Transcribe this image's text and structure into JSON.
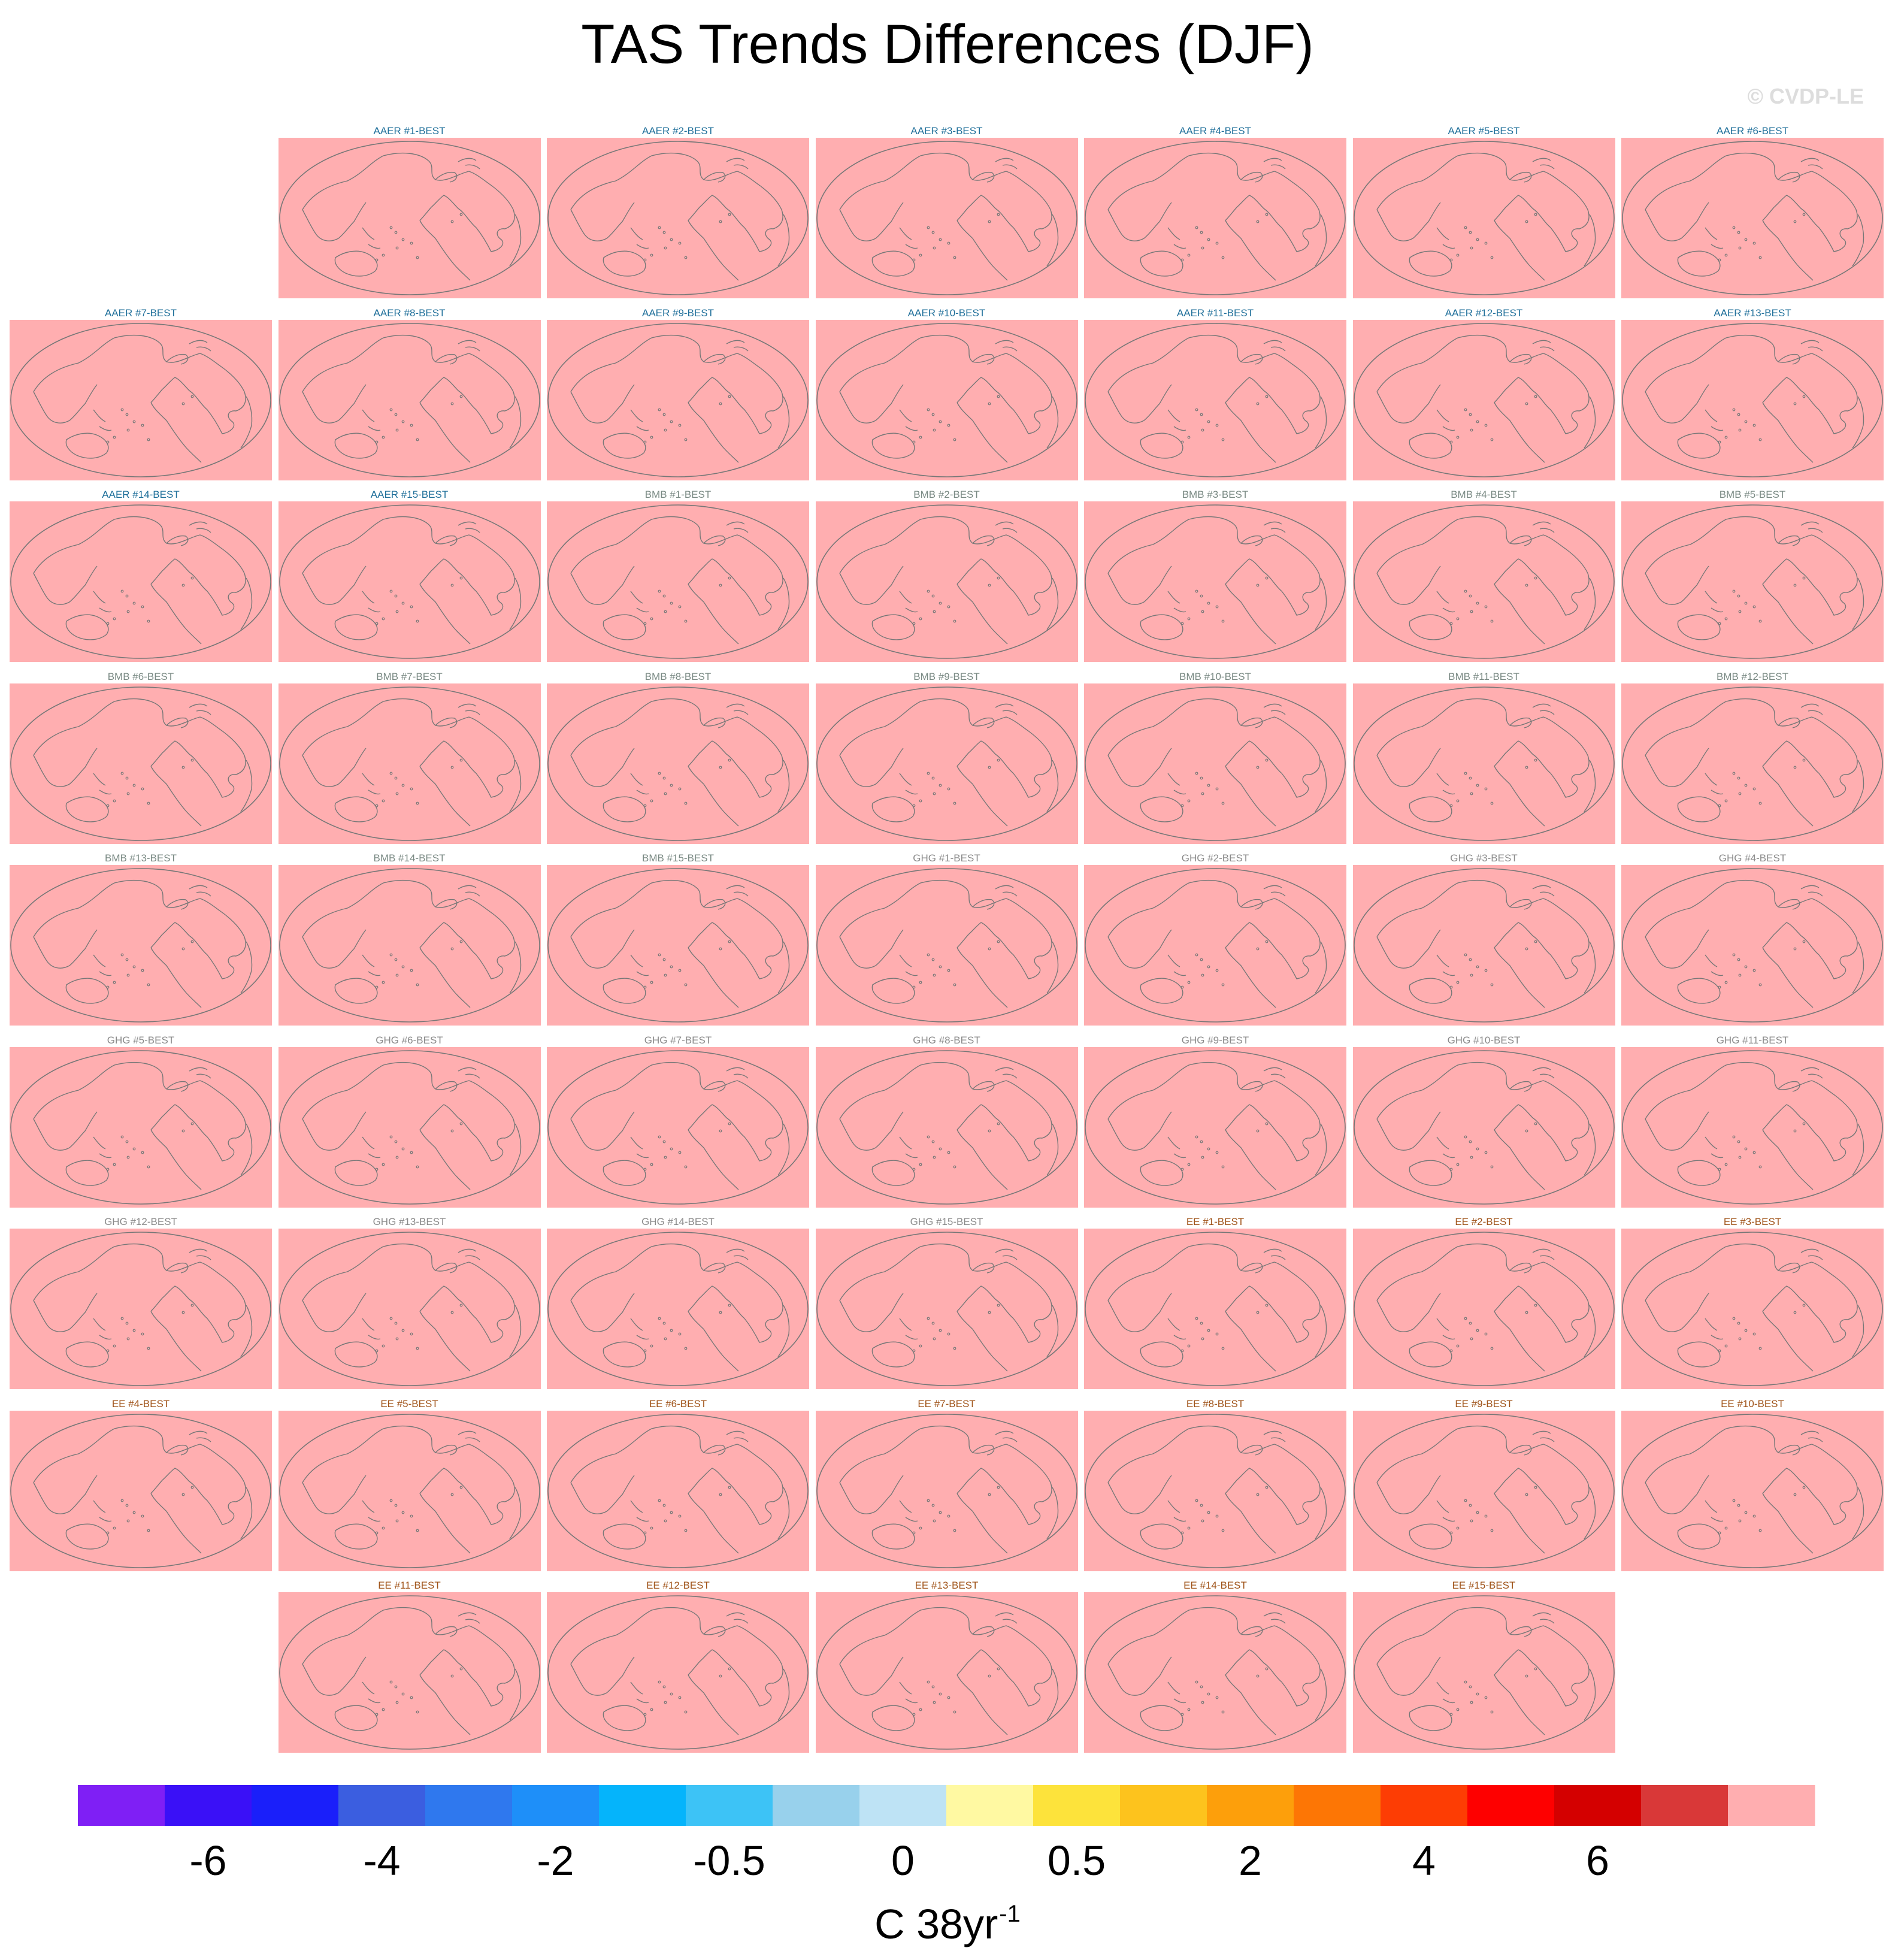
{
  "title": "TAS Trends Differences (DJF)",
  "watermark": "© CVDP-LE",
  "units": {
    "base": "C 38yr",
    "exponent": "-1"
  },
  "colors": {
    "panel_fill": "#ffaeb0",
    "coastline": "#777777",
    "label_AAER": "#1f6f9a",
    "label_BMB": "#7a8a84",
    "label_GHG": "#8a8a8a",
    "label_EE": "#a0541a"
  },
  "chart_data": {
    "type": "heatmap",
    "title": "TAS Trends Differences (DJF)",
    "projection": "robinson-like global map, Pacific-centered",
    "grid_rows": 9,
    "grid_cols": 7,
    "panels": [
      {
        "label": "AAER #1-BEST",
        "group": "AAER",
        "row": 0,
        "col": 1
      },
      {
        "label": "AAER #2-BEST",
        "group": "AAER",
        "row": 0,
        "col": 2
      },
      {
        "label": "AAER #3-BEST",
        "group": "AAER",
        "row": 0,
        "col": 3
      },
      {
        "label": "AAER #4-BEST",
        "group": "AAER",
        "row": 0,
        "col": 4
      },
      {
        "label": "AAER #5-BEST",
        "group": "AAER",
        "row": 0,
        "col": 5
      },
      {
        "label": "AAER #6-BEST",
        "group": "AAER",
        "row": 0,
        "col": 6
      },
      {
        "label": "AAER #7-BEST",
        "group": "AAER",
        "row": 1,
        "col": 0
      },
      {
        "label": "AAER #8-BEST",
        "group": "AAER",
        "row": 1,
        "col": 1
      },
      {
        "label": "AAER #9-BEST",
        "group": "AAER",
        "row": 1,
        "col": 2
      },
      {
        "label": "AAER #10-BEST",
        "group": "AAER",
        "row": 1,
        "col": 3
      },
      {
        "label": "AAER #11-BEST",
        "group": "AAER",
        "row": 1,
        "col": 4
      },
      {
        "label": "AAER #12-BEST",
        "group": "AAER",
        "row": 1,
        "col": 5
      },
      {
        "label": "AAER #13-BEST",
        "group": "AAER",
        "row": 1,
        "col": 6
      },
      {
        "label": "AAER #14-BEST",
        "group": "AAER",
        "row": 2,
        "col": 0
      },
      {
        "label": "AAER #15-BEST",
        "group": "AAER",
        "row": 2,
        "col": 1
      },
      {
        "label": "BMB #1-BEST",
        "group": "BMB",
        "row": 2,
        "col": 2
      },
      {
        "label": "BMB #2-BEST",
        "group": "BMB",
        "row": 2,
        "col": 3
      },
      {
        "label": "BMB #3-BEST",
        "group": "BMB",
        "row": 2,
        "col": 4
      },
      {
        "label": "BMB #4-BEST",
        "group": "BMB",
        "row": 2,
        "col": 5
      },
      {
        "label": "BMB #5-BEST",
        "group": "BMB",
        "row": 2,
        "col": 6
      },
      {
        "label": "BMB #6-BEST",
        "group": "BMB",
        "row": 3,
        "col": 0
      },
      {
        "label": "BMB #7-BEST",
        "group": "BMB",
        "row": 3,
        "col": 1
      },
      {
        "label": "BMB #8-BEST",
        "group": "BMB",
        "row": 3,
        "col": 2
      },
      {
        "label": "BMB #9-BEST",
        "group": "BMB",
        "row": 3,
        "col": 3
      },
      {
        "label": "BMB #10-BEST",
        "group": "BMB",
        "row": 3,
        "col": 4
      },
      {
        "label": "BMB #11-BEST",
        "group": "BMB",
        "row": 3,
        "col": 5
      },
      {
        "label": "BMB #12-BEST",
        "group": "BMB",
        "row": 3,
        "col": 6
      },
      {
        "label": "BMB #13-BEST",
        "group": "BMB",
        "row": 4,
        "col": 0
      },
      {
        "label": "BMB #14-BEST",
        "group": "BMB",
        "row": 4,
        "col": 1
      },
      {
        "label": "BMB #15-BEST",
        "group": "BMB",
        "row": 4,
        "col": 2
      },
      {
        "label": "GHG #1-BEST",
        "group": "GHG",
        "row": 4,
        "col": 3
      },
      {
        "label": "GHG #2-BEST",
        "group": "GHG",
        "row": 4,
        "col": 4
      },
      {
        "label": "GHG #3-BEST",
        "group": "GHG",
        "row": 4,
        "col": 5
      },
      {
        "label": "GHG #4-BEST",
        "group": "GHG",
        "row": 4,
        "col": 6
      },
      {
        "label": "GHG #5-BEST",
        "group": "GHG",
        "row": 5,
        "col": 0
      },
      {
        "label": "GHG #6-BEST",
        "group": "GHG",
        "row": 5,
        "col": 1
      },
      {
        "label": "GHG #7-BEST",
        "group": "GHG",
        "row": 5,
        "col": 2
      },
      {
        "label": "GHG #8-BEST",
        "group": "GHG",
        "row": 5,
        "col": 3
      },
      {
        "label": "GHG #9-BEST",
        "group": "GHG",
        "row": 5,
        "col": 4
      },
      {
        "label": "GHG #10-BEST",
        "group": "GHG",
        "row": 5,
        "col": 5
      },
      {
        "label": "GHG #11-BEST",
        "group": "GHG",
        "row": 5,
        "col": 6
      },
      {
        "label": "GHG #12-BEST",
        "group": "GHG",
        "row": 6,
        "col": 0
      },
      {
        "label": "GHG #13-BEST",
        "group": "GHG",
        "row": 6,
        "col": 1
      },
      {
        "label": "GHG #14-BEST",
        "group": "GHG",
        "row": 6,
        "col": 2
      },
      {
        "label": "GHG #15-BEST",
        "group": "GHG",
        "row": 6,
        "col": 3
      },
      {
        "label": "EE #1-BEST",
        "group": "EE",
        "row": 6,
        "col": 4
      },
      {
        "label": "EE #2-BEST",
        "group": "EE",
        "row": 6,
        "col": 5
      },
      {
        "label": "EE #3-BEST",
        "group": "EE",
        "row": 6,
        "col": 6
      },
      {
        "label": "EE #4-BEST",
        "group": "EE",
        "row": 7,
        "col": 0
      },
      {
        "label": "EE #5-BEST",
        "group": "EE",
        "row": 7,
        "col": 1
      },
      {
        "label": "EE #6-BEST",
        "group": "EE",
        "row": 7,
        "col": 2
      },
      {
        "label": "EE #7-BEST",
        "group": "EE",
        "row": 7,
        "col": 3
      },
      {
        "label": "EE #8-BEST",
        "group": "EE",
        "row": 7,
        "col": 4
      },
      {
        "label": "EE #9-BEST",
        "group": "EE",
        "row": 7,
        "col": 5
      },
      {
        "label": "EE #10-BEST",
        "group": "EE",
        "row": 7,
        "col": 6
      },
      {
        "label": "EE #11-BEST",
        "group": "EE",
        "row": 8,
        "col": 1
      },
      {
        "label": "EE #12-BEST",
        "group": "EE",
        "row": 8,
        "col": 2
      },
      {
        "label": "EE #13-BEST",
        "group": "EE",
        "row": 8,
        "col": 3
      },
      {
        "label": "EE #14-BEST",
        "group": "EE",
        "row": 8,
        "col": 4
      },
      {
        "label": "EE #15-BEST",
        "group": "EE",
        "row": 8,
        "col": 5
      }
    ],
    "panel_value_class": "above max (> 6)",
    "colorbar": {
      "colors": [
        "#7f1ff5",
        "#3a10f7",
        "#1a1ffa",
        "#3b5ee0",
        "#2f78ee",
        "#1e8ff9",
        "#05b4fb",
        "#3dc3f6",
        "#98d1ec",
        "#bee3f5",
        "#fff9a2",
        "#fde33b",
        "#fdc31d",
        "#fd9f0b",
        "#fd7605",
        "#fd3d04",
        "#fe0000",
        "#d40000",
        "#d93838",
        "#ffaeb0"
      ],
      "tick_labels": [
        "-6",
        "-4",
        "-2",
        "-0.5",
        "0",
        "0.5",
        "2",
        "4",
        "6"
      ],
      "tick_boundary_index": [
        2,
        4,
        6,
        8,
        10,
        12,
        14,
        16,
        18
      ],
      "xlabel": "C 38yr-1"
    }
  }
}
